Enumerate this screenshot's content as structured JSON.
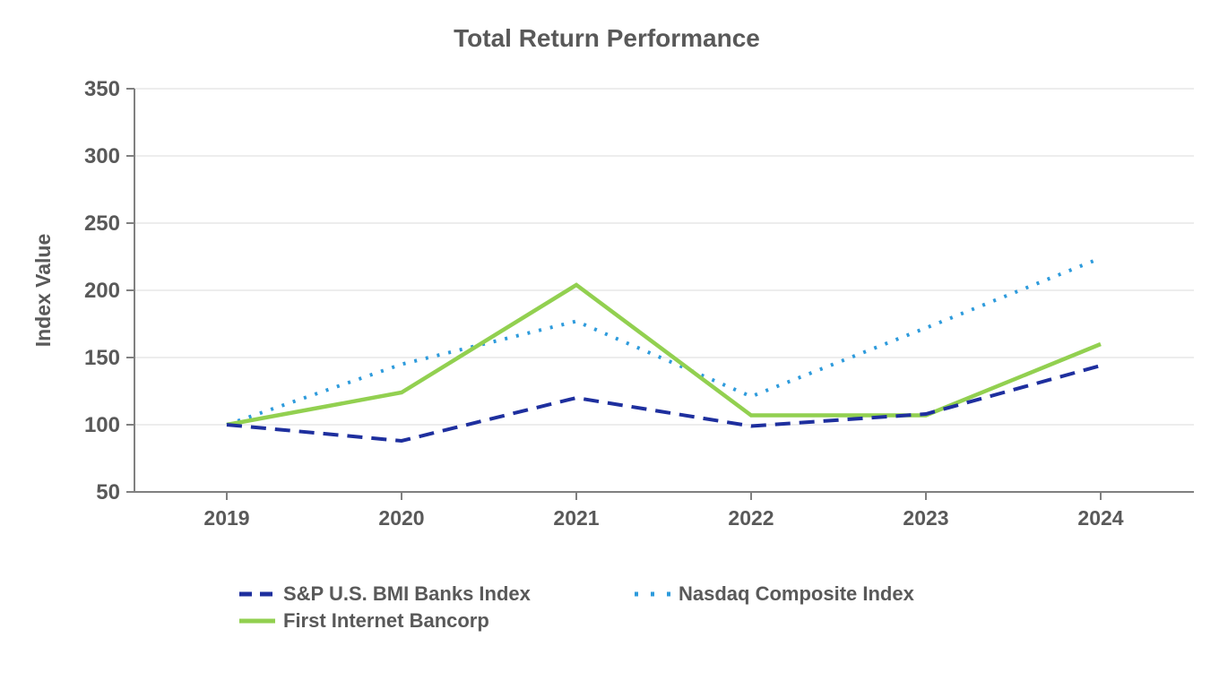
{
  "chart_data": {
    "type": "line",
    "title": "Total Return Performance",
    "xlabel": "",
    "ylabel": "Index Value",
    "categories": [
      "2019",
      "2020",
      "2021",
      "2022",
      "2023",
      "2024"
    ],
    "series": [
      {
        "name": "S&P U.S. BMI Banks Index",
        "line_style": "dashed",
        "color": "#1E2F9E",
        "values": [
          100,
          88,
          120,
          99,
          108,
          144
        ]
      },
      {
        "name": "Nasdaq Composite Index",
        "line_style": "dotted",
        "color": "#2E9BDC",
        "values": [
          100,
          145,
          177,
          121,
          172,
          224
        ]
      },
      {
        "name": "First Internet Bancorp",
        "line_style": "solid",
        "color": "#92D050",
        "values": [
          100,
          124,
          204,
          107,
          107,
          160
        ]
      }
    ],
    "ylim": [
      50,
      350
    ],
    "yticks": [
      50,
      100,
      150,
      200,
      250,
      300,
      350
    ],
    "grid": true,
    "legend_position": "bottom"
  },
  "colors": {
    "text": "#595959",
    "axis": "#808080",
    "grid": "#E7E7E7",
    "background": "#FFFFFF"
  }
}
